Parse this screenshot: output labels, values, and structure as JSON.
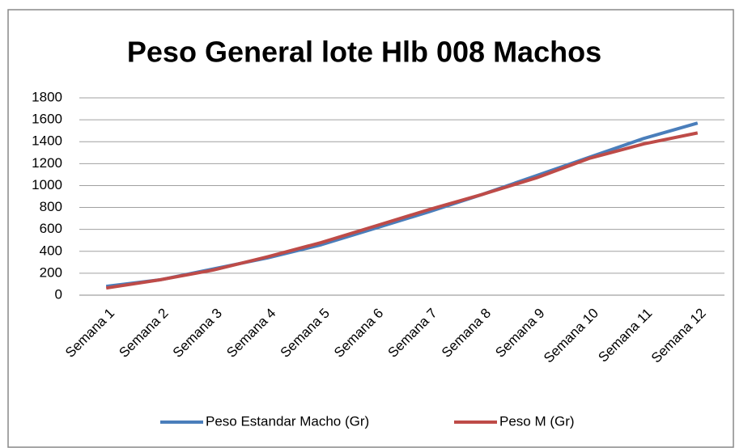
{
  "chart_data": {
    "type": "line",
    "title": "Peso General lote Hlb 008 Machos",
    "categories": [
      "Semana 1",
      "Semana 2",
      "Semana 3",
      "Semana 4",
      "Semana 5",
      "Semana 6",
      "Semana 7",
      "Semana 8",
      "Semana 9",
      "Semana 10",
      "Semana 11",
      "Semana 12"
    ],
    "series": [
      {
        "name": "Peso Estandar Macho (Gr)",
        "color": "#4a7ebb",
        "values": [
          80,
          140,
          240,
          340,
          460,
          610,
          760,
          920,
          1090,
          1260,
          1430,
          1570
        ]
      },
      {
        "name": "Peso M (Gr)",
        "color": "#be4b48",
        "values": [
          65,
          140,
          230,
          350,
          480,
          630,
          780,
          920,
          1070,
          1250,
          1380,
          1480
        ]
      }
    ],
    "ylim": [
      0,
      1800
    ],
    "yticks": [
      0,
      200,
      400,
      600,
      800,
      1000,
      1200,
      1400,
      1600,
      1800
    ],
    "grid": true,
    "legend": "bottom"
  }
}
